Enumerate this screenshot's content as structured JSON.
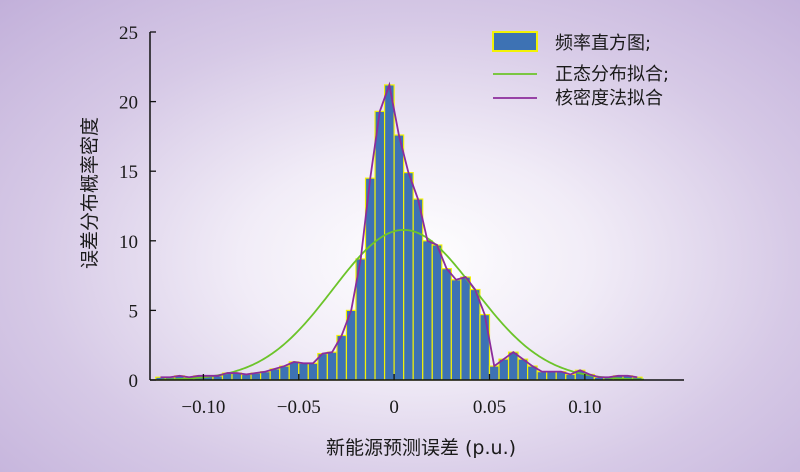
{
  "chart_data": {
    "type": "bar",
    "xlabel": "新能源预测误差 (p.u.)",
    "ylabel": "误差分布概率密度",
    "xlim": [
      -0.128,
      0.152
    ],
    "ylim": [
      0,
      25
    ],
    "xticks": [
      -0.1,
      -0.05,
      0,
      0.05,
      0.1
    ],
    "xtick_labels": [
      "−0.10",
      "−0.05",
      "0",
      "0.05",
      "0.10"
    ],
    "yticks": [
      0,
      5,
      10,
      15,
      20,
      25
    ],
    "ytick_labels": [
      "0",
      "5",
      "10",
      "15",
      "20",
      "25"
    ],
    "legend_position": "top-right",
    "legend": [
      {
        "label": "频率直方图;",
        "kind": "bar"
      },
      {
        "label": "正态分布拟合;",
        "kind": "line"
      },
      {
        "label": "核密度法拟合",
        "kind": "line"
      }
    ],
    "colors": {
      "bar_fill": "#3d72b4",
      "bar_edge": "#f2f205",
      "normal_fit": "#6cc42a",
      "kde_fit": "#8c2c9c",
      "axis": "#111111"
    },
    "bin_width": 0.005,
    "histogram": {
      "bin_centers": [
        -0.1225,
        -0.1175,
        -0.1125,
        -0.1075,
        -0.1025,
        -0.0975,
        -0.0925,
        -0.0875,
        -0.0825,
        -0.0775,
        -0.0725,
        -0.0675,
        -0.0625,
        -0.0575,
        -0.0525,
        -0.0475,
        -0.0425,
        -0.0375,
        -0.0325,
        -0.0275,
        -0.0225,
        -0.0175,
        -0.0125,
        -0.0075,
        -0.0025,
        0.0025,
        0.0075,
        0.0125,
        0.0175,
        0.0225,
        0.0275,
        0.0325,
        0.0375,
        0.0425,
        0.0475,
        0.0525,
        0.0575,
        0.0625,
        0.0675,
        0.0725,
        0.0775,
        0.0825,
        0.0875,
        0.0925,
        0.0975,
        0.1025,
        0.1075,
        0.1125,
        0.1175,
        0.1225,
        0.1275
      ],
      "density": [
        0.2,
        0.2,
        0.3,
        0.2,
        0.3,
        0.3,
        0.3,
        0.5,
        0.5,
        0.4,
        0.5,
        0.6,
        0.8,
        1.0,
        1.3,
        1.2,
        1.2,
        1.9,
        2.0,
        3.2,
        5.0,
        8.7,
        14.5,
        19.3,
        21.2,
        17.6,
        14.9,
        13.0,
        10.0,
        9.7,
        8.0,
        7.2,
        7.4,
        6.5,
        4.7,
        1.0,
        1.5,
        2.0,
        1.5,
        1.0,
        0.6,
        0.6,
        0.6,
        0.4,
        0.7,
        0.4,
        0.2,
        0.2,
        0.3,
        0.3,
        0.2
      ]
    },
    "normal_fit": {
      "mean": 0.005,
      "std": 0.037
    },
    "kde_fit": {
      "x": [
        -0.1225,
        -0.1175,
        -0.1125,
        -0.1075,
        -0.1025,
        -0.0975,
        -0.0925,
        -0.0875,
        -0.0825,
        -0.0775,
        -0.0725,
        -0.0675,
        -0.0625,
        -0.0575,
        -0.0525,
        -0.0475,
        -0.0425,
        -0.0375,
        -0.0325,
        -0.0275,
        -0.0225,
        -0.0175,
        -0.0125,
        -0.0075,
        -0.0025,
        0.0025,
        0.0075,
        0.0125,
        0.0175,
        0.0225,
        0.0275,
        0.0325,
        0.0375,
        0.0425,
        0.0475,
        0.0525,
        0.0575,
        0.0625,
        0.0675,
        0.0725,
        0.0775,
        0.0825,
        0.0875,
        0.0925,
        0.0975,
        0.1025,
        0.1075,
        0.1125,
        0.1175,
        0.1225,
        0.1275
      ],
      "y": [
        0.2,
        0.2,
        0.3,
        0.2,
        0.3,
        0.3,
        0.3,
        0.5,
        0.5,
        0.4,
        0.5,
        0.6,
        0.8,
        1.0,
        1.3,
        1.2,
        1.2,
        1.9,
        2.0,
        3.2,
        5.0,
        8.7,
        14.5,
        19.3,
        21.2,
        17.6,
        14.9,
        13.0,
        10.0,
        9.7,
        8.0,
        7.2,
        7.4,
        6.5,
        4.7,
        1.0,
        1.5,
        2.0,
        1.5,
        1.0,
        0.6,
        0.6,
        0.6,
        0.4,
        0.7,
        0.4,
        0.2,
        0.2,
        0.3,
        0.3,
        0.2
      ]
    }
  }
}
